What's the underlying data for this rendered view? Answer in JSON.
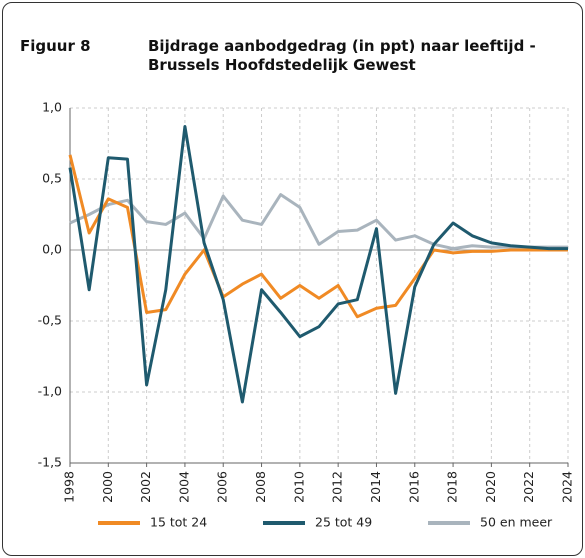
{
  "chart_data": {
    "type": "line",
    "figure_label": "Figuur 8",
    "title": "Bijdrage aanbodgedrag (in ppt) naar leeftijd - Brussels Hoofdstedelijk Gewest",
    "x": [
      1998,
      1999,
      2000,
      2001,
      2002,
      2003,
      2004,
      2005,
      2006,
      2007,
      2008,
      2009,
      2010,
      2011,
      2012,
      2013,
      2014,
      2015,
      2016,
      2017,
      2018,
      2019,
      2020,
      2021,
      2022,
      2023,
      2024
    ],
    "series": [
      {
        "name": "15 tot 24",
        "color": "#f08a24",
        "values": [
          0.67,
          0.12,
          0.36,
          0.3,
          -0.44,
          -0.42,
          -0.17,
          0.0,
          -0.33,
          -0.24,
          -0.17,
          -0.34,
          -0.25,
          -0.34,
          -0.25,
          -0.47,
          -0.41,
          -0.39,
          -0.2,
          0.0,
          -0.02,
          -0.01,
          -0.01,
          0.0,
          0.0,
          0.0,
          0.0
        ]
      },
      {
        "name": "25 tot 49",
        "color": "#1f5a6e",
        "values": [
          0.58,
          -0.28,
          0.65,
          0.64,
          -0.95,
          -0.28,
          0.87,
          0.05,
          -0.35,
          -1.07,
          -0.28,
          -0.44,
          -0.61,
          -0.54,
          -0.38,
          -0.35,
          0.15,
          -1.01,
          -0.26,
          0.04,
          0.19,
          0.1,
          0.05,
          0.03,
          0.02,
          0.01,
          0.01
        ]
      },
      {
        "name": "50 en meer",
        "color": "#a9b4bd",
        "values": [
          0.19,
          0.25,
          0.32,
          0.35,
          0.2,
          0.18,
          0.26,
          0.08,
          0.38,
          0.21,
          0.18,
          0.39,
          0.3,
          0.04,
          0.13,
          0.14,
          0.21,
          0.07,
          0.1,
          0.04,
          0.01,
          0.03,
          0.02,
          0.02,
          0.02,
          0.02,
          0.02
        ]
      }
    ],
    "xlim": [
      1998,
      2024
    ],
    "xticks": [
      1998,
      2000,
      2002,
      2004,
      2006,
      2008,
      2010,
      2012,
      2014,
      2016,
      2018,
      2020,
      2022,
      2024
    ],
    "ylim": [
      -1.5,
      1.0
    ],
    "yticks": [
      {
        "value": 1.0,
        "label": "1,0"
      },
      {
        "value": 0.5,
        "label": "0,5"
      },
      {
        "value": 0.0,
        "label": "0,0"
      },
      {
        "value": -0.5,
        "label": "-0,5"
      },
      {
        "value": -1.0,
        "label": "-1,0"
      },
      {
        "value": -1.5,
        "label": "-1,5"
      }
    ],
    "grid": true,
    "legend": "bottom"
  }
}
